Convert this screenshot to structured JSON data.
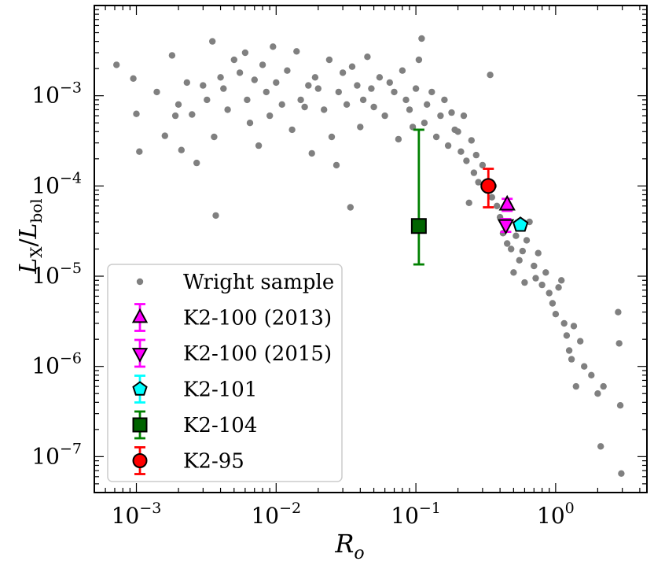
{
  "chart_data": {
    "type": "scatter",
    "xlabel": "R_o",
    "ylabel": "L_X/L_bol",
    "x_scale": "log",
    "y_scale": "log",
    "xlim": [
      0.0005,
      4.5
    ],
    "ylim": [
      4e-08,
      0.01
    ],
    "x_ticks": [
      {
        "value": 0.001,
        "base": "10",
        "exp": "−3"
      },
      {
        "value": 0.01,
        "base": "10",
        "exp": "−2"
      },
      {
        "value": 0.1,
        "base": "10",
        "exp": "−1"
      },
      {
        "value": 1,
        "base": "10",
        "exp": "0"
      }
    ],
    "y_ticks": [
      {
        "value": 1e-07,
        "base": "10",
        "exp": "−7"
      },
      {
        "value": 1e-06,
        "base": "10",
        "exp": "−6"
      },
      {
        "value": 1e-05,
        "base": "10",
        "exp": "−5"
      },
      {
        "value": 0.0001,
        "base": "10",
        "exp": "−4"
      },
      {
        "value": 0.001,
        "base": "10",
        "exp": "−3"
      }
    ],
    "legend_position": "lower-left",
    "background_sample": {
      "name": "Wright sample",
      "color": "#808080",
      "note": "≈800 points; representative subset listed",
      "points": [
        [
          0.00072,
          0.0022
        ],
        [
          0.00095,
          0.00155
        ],
        [
          0.001,
          0.00063
        ],
        [
          0.00105,
          0.00024
        ],
        [
          0.0014,
          0.0011
        ],
        [
          0.0016,
          0.00036
        ],
        [
          0.0018,
          0.0028
        ],
        [
          0.0019,
          0.0006
        ],
        [
          0.002,
          0.0008
        ],
        [
          0.0021,
          0.00025
        ],
        [
          0.0023,
          0.0014
        ],
        [
          0.0025,
          0.00062
        ],
        [
          0.0027,
          0.00018
        ],
        [
          0.003,
          0.0013
        ],
        [
          0.0032,
          0.0009
        ],
        [
          0.0035,
          0.004
        ],
        [
          0.0036,
          0.00035
        ],
        [
          0.0037,
          4.7e-05
        ],
        [
          0.004,
          0.0016
        ],
        [
          0.0042,
          0.0012
        ],
        [
          0.0045,
          0.0007
        ],
        [
          0.005,
          0.0025
        ],
        [
          0.0055,
          0.0018
        ],
        [
          0.006,
          0.003
        ],
        [
          0.0062,
          0.0009
        ],
        [
          0.0065,
          0.0005
        ],
        [
          0.007,
          0.0015
        ],
        [
          0.0075,
          0.00028
        ],
        [
          0.008,
          0.0022
        ],
        [
          0.0085,
          0.0011
        ],
        [
          0.009,
          0.0006
        ],
        [
          0.0095,
          0.0035
        ],
        [
          0.01,
          0.0014
        ],
        [
          0.011,
          0.0008
        ],
        [
          0.012,
          0.0019
        ],
        [
          0.013,
          0.00042
        ],
        [
          0.014,
          0.0031
        ],
        [
          0.015,
          0.0009
        ],
        [
          0.016,
          0.00075
        ],
        [
          0.017,
          0.0013
        ],
        [
          0.018,
          0.00023
        ],
        [
          0.019,
          0.0016
        ],
        [
          0.02,
          0.0012
        ],
        [
          0.022,
          0.0007
        ],
        [
          0.024,
          0.0025
        ],
        [
          0.025,
          0.00035
        ],
        [
          0.027,
          0.00017
        ],
        [
          0.028,
          0.0011
        ],
        [
          0.03,
          0.0018
        ],
        [
          0.032,
          0.0008
        ],
        [
          0.034,
          5.8e-05
        ],
        [
          0.035,
          0.0021
        ],
        [
          0.038,
          0.0013
        ],
        [
          0.04,
          0.00045
        ],
        [
          0.042,
          0.0009
        ],
        [
          0.045,
          0.0027
        ],
        [
          0.048,
          0.0012
        ],
        [
          0.05,
          0.00075
        ],
        [
          0.055,
          0.0016
        ],
        [
          0.06,
          0.0006
        ],
        [
          0.065,
          0.0014
        ],
        [
          0.07,
          0.0011
        ],
        [
          0.075,
          0.00033
        ],
        [
          0.08,
          0.0019
        ],
        [
          0.085,
          0.0009
        ],
        [
          0.09,
          0.0007
        ],
        [
          0.095,
          0.00045
        ],
        [
          0.1,
          0.0012
        ],
        [
          0.105,
          0.0025
        ],
        [
          0.11,
          0.0043
        ],
        [
          0.115,
          0.0005
        ],
        [
          0.12,
          0.0008
        ],
        [
          0.13,
          0.0011
        ],
        [
          0.14,
          0.00035
        ],
        [
          0.15,
          0.0006
        ],
        [
          0.16,
          0.0009
        ],
        [
          0.17,
          0.00028
        ],
        [
          0.18,
          0.00065
        ],
        [
          0.19,
          0.00042
        ],
        [
          0.2,
          0.0004
        ],
        [
          0.21,
          0.00024
        ],
        [
          0.22,
          0.0006
        ],
        [
          0.23,
          0.00019
        ],
        [
          0.24,
          6.5e-05
        ],
        [
          0.25,
          0.00032
        ],
        [
          0.26,
          0.00014
        ],
        [
          0.27,
          0.00022
        ],
        [
          0.28,
          0.00011
        ],
        [
          0.3,
          0.00017
        ],
        [
          0.32,
          9e-05
        ],
        [
          0.34,
          0.0017
        ],
        [
          0.35,
          7.5e-05
        ],
        [
          0.36,
          0.0001
        ],
        [
          0.38,
          6e-05
        ],
        [
          0.4,
          4.5e-05
        ],
        [
          0.42,
          3e-05
        ],
        [
          0.45,
          2.3e-05
        ],
        [
          0.48,
          2e-05
        ],
        [
          0.5,
          1.1e-05
        ],
        [
          0.52,
          2.8e-05
        ],
        [
          0.55,
          1.5e-05
        ],
        [
          0.58,
          1.9e-05
        ],
        [
          0.6,
          8.5e-06
        ],
        [
          0.62,
          2.5e-05
        ],
        [
          0.65,
          4e-05
        ],
        [
          0.7,
          1.3e-05
        ],
        [
          0.72,
          9.5e-06
        ],
        [
          0.75,
          1.8e-05
        ],
        [
          0.8,
          8e-06
        ],
        [
          0.85,
          1.1e-05
        ],
        [
          0.9,
          6.5e-06
        ],
        [
          0.95,
          5e-06
        ],
        [
          1.0,
          3.8e-06
        ],
        [
          1.05,
          7.5e-06
        ],
        [
          1.1,
          9e-06
        ],
        [
          1.15,
          3e-06
        ],
        [
          1.2,
          2.2e-06
        ],
        [
          1.25,
          1.5e-06
        ],
        [
          1.3,
          1.2e-06
        ],
        [
          1.35,
          2.8e-06
        ],
        [
          1.4,
          6e-07
        ],
        [
          1.5,
          1.9e-06
        ],
        [
          1.6,
          1e-06
        ],
        [
          1.8,
          8e-07
        ],
        [
          2.0,
          5e-07
        ],
        [
          2.1,
          1.3e-07
        ],
        [
          2.2,
          6e-07
        ],
        [
          2.8,
          4e-06
        ],
        [
          2.85,
          1.8e-06
        ],
        [
          2.9,
          3.7e-07
        ],
        [
          2.95,
          6.5e-08
        ]
      ]
    },
    "series": [
      {
        "name": "K2-100 (2013)",
        "marker": "triangle-up",
        "color": "#ff00ff",
        "errcolor": "#ff00ff",
        "x": 0.45,
        "y": 6.2e-05,
        "yerr_low": 5.3e-05,
        "yerr_high": 7.2e-05
      },
      {
        "name": "K2-100 (2015)",
        "marker": "triangle-down",
        "color": "#ff00ff",
        "errcolor": "#ff00ff",
        "x": 0.44,
        "y": 3.7e-05,
        "yerr_low": 3.1e-05,
        "yerr_high": 4.3e-05
      },
      {
        "name": "K2-101",
        "marker": "pentagon",
        "color": "#00ffff",
        "errcolor": "#00ffff",
        "x": 0.56,
        "y": 3.7e-05,
        "yerr_low": 3.4e-05,
        "yerr_high": 4.1e-05
      },
      {
        "name": "K2-104",
        "marker": "square",
        "color": "#006400",
        "errcolor": "#008000",
        "x": 0.105,
        "y": 3.6e-05,
        "yerr_low": 1.35e-05,
        "yerr_high": 0.00042
      },
      {
        "name": "K2-95",
        "marker": "circle",
        "color": "#ff0000",
        "errcolor": "#ff0000",
        "x": 0.33,
        "y": 0.0001,
        "yerr_low": 5.8e-05,
        "yerr_high": 0.000155
      }
    ]
  }
}
